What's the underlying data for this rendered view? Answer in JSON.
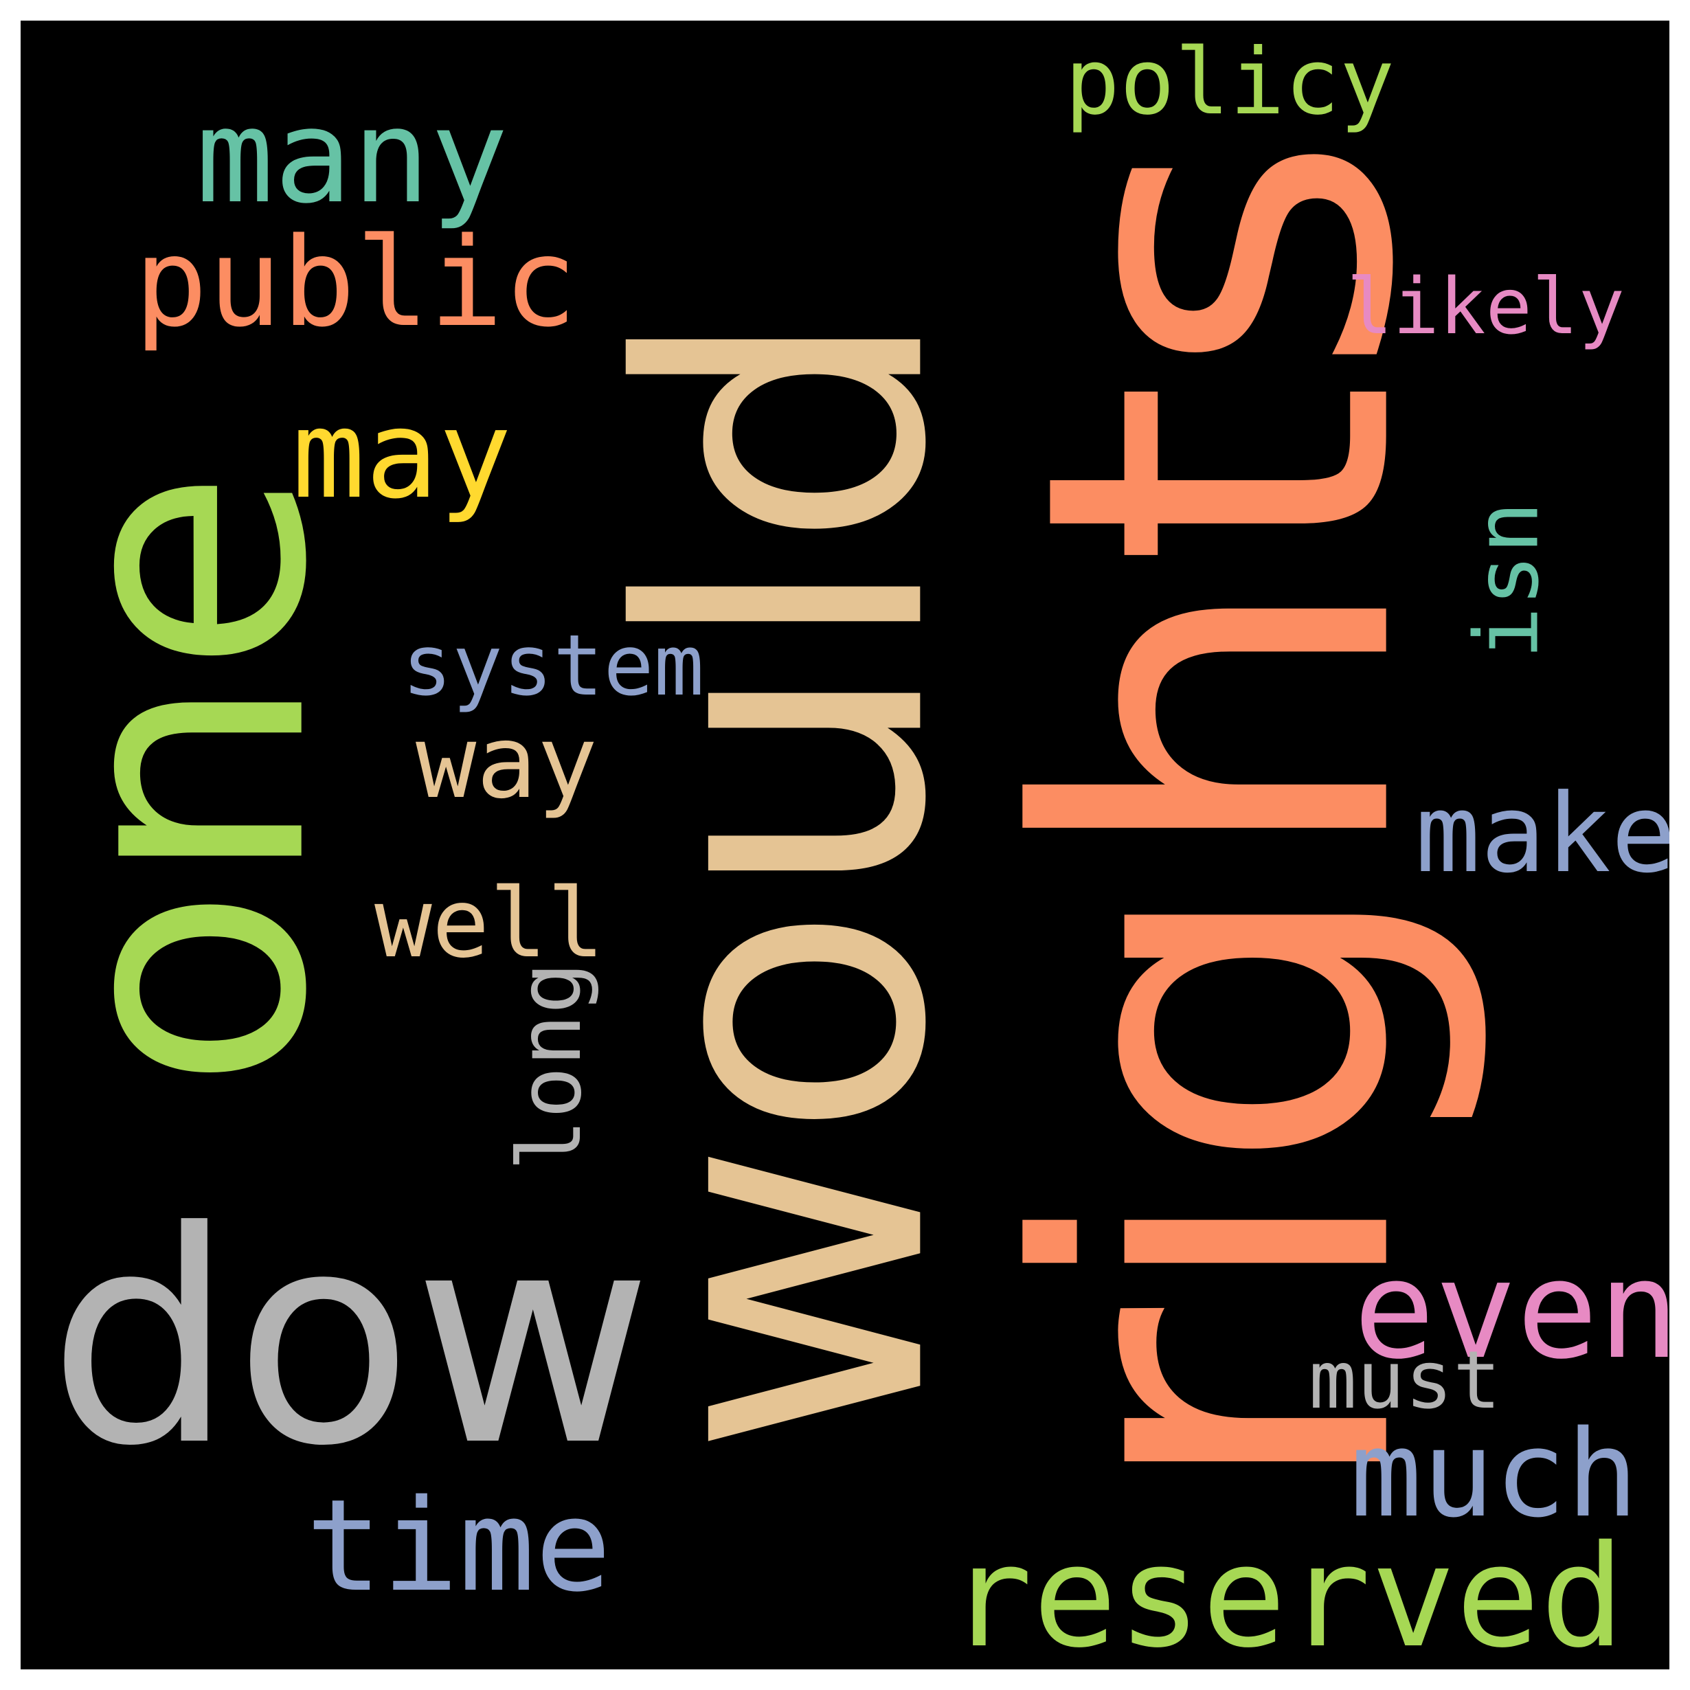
{
  "words": [
    {
      "text": "would",
      "color": "#e5c494"
    },
    {
      "text": "rights",
      "color": "#fc8d62"
    },
    {
      "text": "one",
      "color": "#a6d854"
    },
    {
      "text": "dow",
      "color": "#b3b3b3"
    },
    {
      "text": "many",
      "color": "#66c2a5"
    },
    {
      "text": "public",
      "color": "#fc8d62"
    },
    {
      "text": "policy",
      "color": "#a6d854"
    },
    {
      "text": "likely",
      "color": "#e78ac3"
    },
    {
      "text": "may",
      "color": "#ffd92f"
    },
    {
      "text": "isn",
      "color": "#66c2a5"
    },
    {
      "text": "system",
      "color": "#8da0cb"
    },
    {
      "text": "way",
      "color": "#e5c494"
    },
    {
      "text": "make",
      "color": "#8da0cb"
    },
    {
      "text": "well",
      "color": "#e5c494"
    },
    {
      "text": "long",
      "color": "#b3b3b3"
    },
    {
      "text": "even",
      "color": "#e78ac3"
    },
    {
      "text": "must",
      "color": "#b3b3b3"
    },
    {
      "text": "much",
      "color": "#8da0cb"
    },
    {
      "text": "time",
      "color": "#8da0cb"
    },
    {
      "text": "reserved",
      "color": "#a6d854"
    }
  ]
}
